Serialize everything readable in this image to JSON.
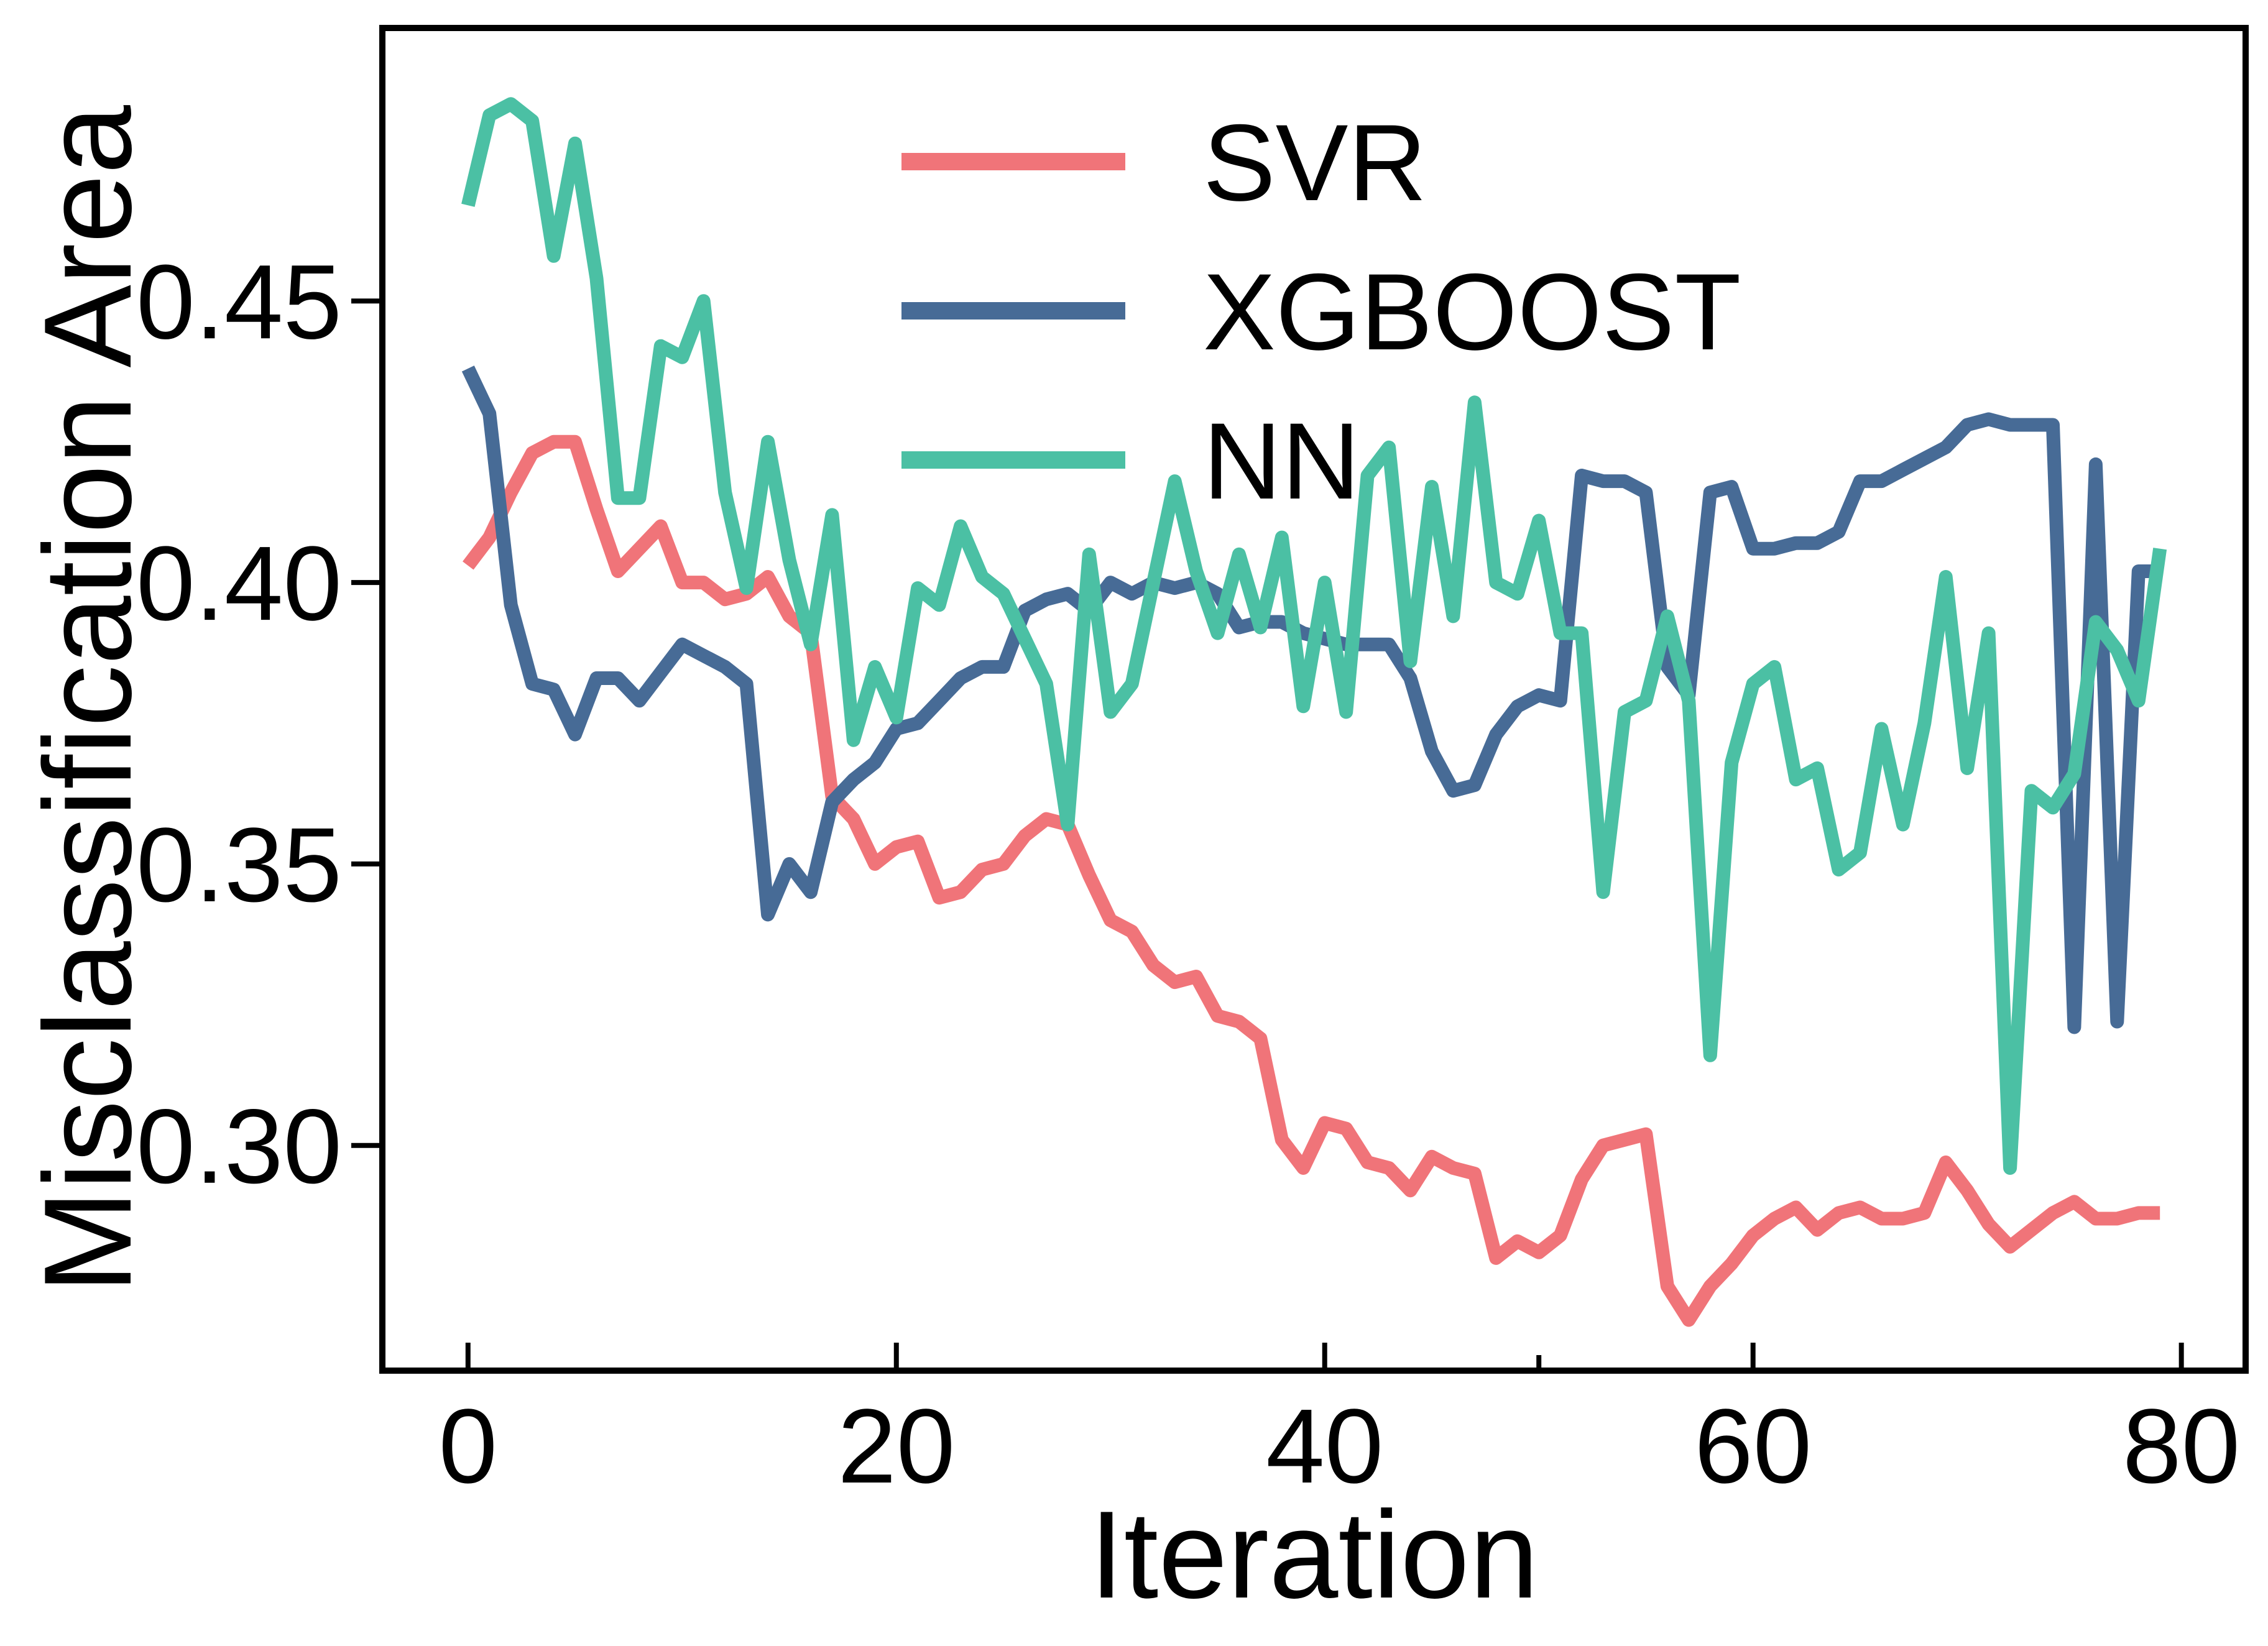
{
  "chart_data": {
    "type": "line",
    "xlabel": "Iteration",
    "ylabel": "Misclassification Area",
    "xlim": [
      -4,
      83
    ],
    "ylim": [
      0.26,
      0.4985
    ],
    "xticks": [
      0,
      20,
      40,
      60,
      80
    ],
    "xtick_labels": [
      "0",
      "20",
      "40",
      "60",
      "80"
    ],
    "xminor_ticks": [
      50
    ],
    "yticks": [
      0.3,
      0.35,
      0.4,
      0.45
    ],
    "ytick_labels": [
      "0.30",
      "0.35",
      "0.40",
      "0.45"
    ],
    "grid": false,
    "legend_position": "top-center",
    "series": [
      {
        "name": "SVR",
        "color": "#f07479",
        "values": [
          0.403,
          0.408,
          0.416,
          0.423,
          0.425,
          0.425,
          0.413,
          0.402,
          0.406,
          0.41,
          0.4,
          0.4,
          0.397,
          0.398,
          0.401,
          0.394,
          0.391,
          0.362,
          0.358,
          0.35,
          0.353,
          0.354,
          0.344,
          0.345,
          0.349,
          0.35,
          0.355,
          0.358,
          0.357,
          0.348,
          0.34,
          0.338,
          0.332,
          0.329,
          0.33,
          0.323,
          0.322,
          0.319,
          0.301,
          0.296,
          0.304,
          0.303,
          0.297,
          0.296,
          0.292,
          0.298,
          0.296,
          0.295,
          0.28,
          0.283,
          0.281,
          0.284,
          0.294,
          0.3,
          0.301,
          0.302,
          0.275,
          0.269,
          0.275,
          0.279,
          0.284,
          0.287,
          0.289,
          0.285,
          0.288,
          0.289,
          0.287,
          0.287,
          0.288,
          0.297,
          0.292,
          0.286,
          0.282,
          0.285,
          0.288,
          0.29,
          0.287,
          0.287,
          0.288,
          0.288
        ]
      },
      {
        "name": "XGBOOST",
        "color": "#476b96",
        "values": [
          0.438,
          0.43,
          0.396,
          0.382,
          0.381,
          0.373,
          0.383,
          0.383,
          0.379,
          0.384,
          0.389,
          0.387,
          0.385,
          0.382,
          0.341,
          0.35,
          0.345,
          0.361,
          0.365,
          0.368,
          0.374,
          0.375,
          0.379,
          0.383,
          0.385,
          0.385,
          0.395,
          0.397,
          0.398,
          0.395,
          0.4,
          0.398,
          0.4,
          0.399,
          0.4,
          0.398,
          0.392,
          0.393,
          0.393,
          0.391,
          0.39,
          0.389,
          0.389,
          0.389,
          0.383,
          0.37,
          0.363,
          0.364,
          0.373,
          0.378,
          0.38,
          0.379,
          0.419,
          0.418,
          0.418,
          0.416,
          0.385,
          0.38,
          0.416,
          0.417,
          0.406,
          0.406,
          0.407,
          0.407,
          0.409,
          0.418,
          0.418,
          0.42,
          0.422,
          0.424,
          0.428,
          0.429,
          0.428,
          0.428,
          0.428,
          0.321,
          0.421,
          0.322,
          0.402,
          0.402
        ]
      },
      {
        "name": "NN",
        "color": "#4bc0a4",
        "values": [
          0.467,
          0.483,
          0.485,
          0.482,
          0.458,
          0.478,
          0.454,
          0.415,
          0.415,
          0.442,
          0.44,
          0.45,
          0.416,
          0.399,
          0.425,
          0.404,
          0.389,
          0.412,
          0.372,
          0.385,
          0.376,
          0.399,
          0.396,
          0.41,
          0.401,
          0.398,
          0.39,
          0.382,
          0.357,
          0.405,
          0.377,
          0.382,
          0.4,
          0.418,
          0.402,
          0.391,
          0.405,
          0.392,
          0.408,
          0.378,
          0.4,
          0.377,
          0.419,
          0.424,
          0.386,
          0.417,
          0.394,
          0.432,
          0.4,
          0.398,
          0.411,
          0.391,
          0.391,
          0.345,
          0.377,
          0.379,
          0.394,
          0.379,
          0.316,
          0.368,
          0.382,
          0.385,
          0.365,
          0.367,
          0.349,
          0.352,
          0.374,
          0.357,
          0.375,
          0.401,
          0.367,
          0.391,
          0.296,
          0.363,
          0.36,
          0.366,
          0.393,
          0.388,
          0.379,
          0.406
        ]
      }
    ]
  }
}
